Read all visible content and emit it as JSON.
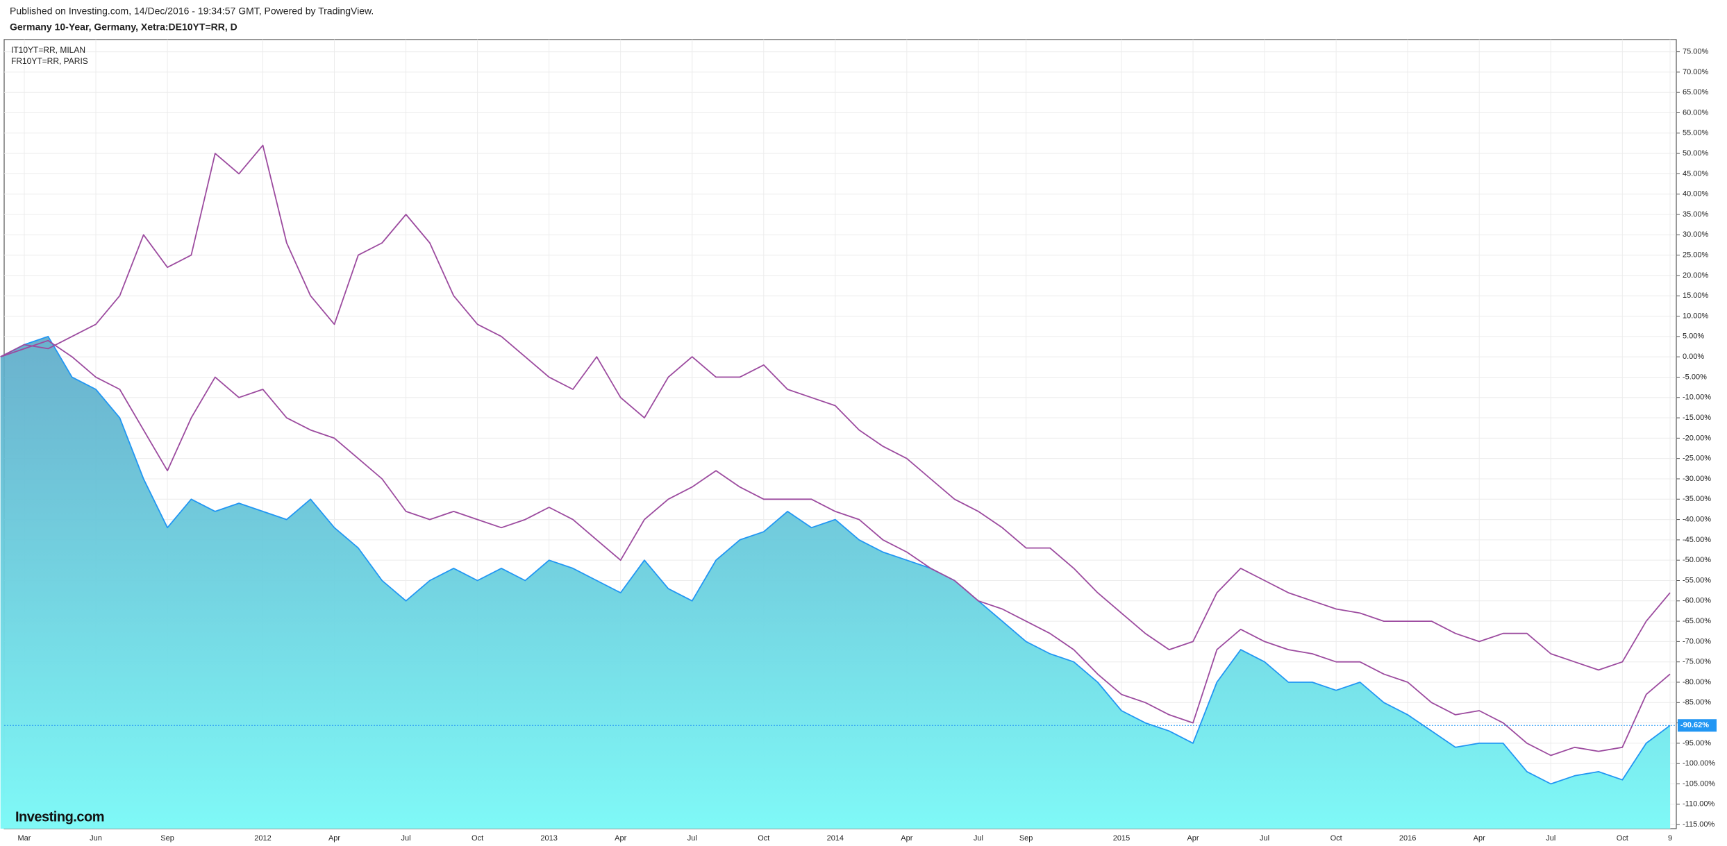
{
  "chart_data": {
    "type": "line",
    "header": "Published on Investing.com, 14/Dec/2016 - 19:34:57 GMT, Powered by TradingView.",
    "title": "Germany 10-Year, Germany, Xetra:DE10YT=RR, D",
    "logo": "Investing.com",
    "last_value_label": "-90.62%",
    "categories": [
      null,
      "Mar",
      null,
      null,
      "Jun",
      null,
      null,
      "Sep",
      null,
      null,
      null,
      "2012",
      null,
      null,
      "Apr",
      null,
      null,
      "Jul",
      null,
      null,
      "Oct",
      null,
      null,
      "2013",
      null,
      null,
      "Apr",
      null,
      null,
      "Jul",
      null,
      null,
      "Oct",
      null,
      null,
      "2014",
      null,
      null,
      "Apr",
      null,
      null,
      "Jul",
      null,
      "Sep",
      null,
      null,
      null,
      "2015",
      null,
      null,
      "Apr",
      null,
      null,
      "Jul",
      null,
      null,
      "Oct",
      null,
      null,
      "2016",
      null,
      null,
      "Apr",
      null,
      null,
      "Jul",
      null,
      null,
      "Oct",
      null,
      "9"
    ],
    "series": [
      {
        "color": "#2196f3",
        "area": true,
        "values": [
          0,
          3,
          5,
          -5,
          -8,
          -15,
          -30,
          -42,
          -35,
          -38,
          -36,
          -38,
          -40,
          -35,
          -42,
          -47,
          -55,
          -60,
          -55,
          -52,
          -55,
          -52,
          -55,
          -50,
          -52,
          -55,
          -58,
          -50,
          -57,
          -60,
          -50,
          -45,
          -43,
          -38,
          -42,
          -40,
          -45,
          -48,
          -50,
          -52,
          -55,
          -60,
          -65,
          -70,
          -73,
          -75,
          -80,
          -87,
          -90,
          -92,
          -95,
          -80,
          -72,
          -75,
          -80,
          -80,
          -82,
          -80,
          -85,
          -88,
          -92,
          -96,
          -95,
          -95,
          -102,
          -105,
          -103,
          -102,
          -104,
          -95,
          -90.62
        ]
      },
      {
        "name": "IT10YT=RR, MILAN",
        "color": "#9c4b9f",
        "values": [
          0,
          3,
          2,
          5,
          8,
          15,
          30,
          22,
          25,
          50,
          45,
          52,
          28,
          15,
          8,
          25,
          28,
          35,
          28,
          15,
          8,
          5,
          0,
          -5,
          -8,
          0,
          -10,
          -15,
          -5,
          0,
          -5,
          -5,
          -2,
          -8,
          -10,
          -12,
          -18,
          -22,
          -25,
          -30,
          -35,
          -38,
          -42,
          -47,
          -47,
          -52,
          -58,
          -63,
          -68,
          -72,
          -70,
          -58,
          -52,
          -55,
          -58,
          -60,
          -62,
          -63,
          -65,
          -65,
          -65,
          -68,
          -70,
          -68,
          -68,
          -73,
          -75,
          -77,
          -75,
          -65,
          -58
        ]
      },
      {
        "name": "FR10YT=RR, PARIS",
        "color": "#9c4b9f",
        "values": [
          0,
          2,
          4,
          0,
          -5,
          -8,
          -18,
          -28,
          -15,
          -5,
          -10,
          -8,
          -15,
          -18,
          -20,
          -25,
          -30,
          -38,
          -40,
          -38,
          -40,
          -42,
          -40,
          -37,
          -40,
          -45,
          -50,
          -40,
          -35,
          -32,
          -28,
          -32,
          -35,
          -35,
          -35,
          -38,
          -40,
          -45,
          -48,
          -52,
          -55,
          -60,
          -62,
          -65,
          -68,
          -72,
          -78,
          -83,
          -85,
          -88,
          -90,
          -72,
          -67,
          -70,
          -72,
          -73,
          -75,
          -75,
          -78,
          -80,
          -85,
          -88,
          -87,
          -90,
          -95,
          -98,
          -96,
          -97,
          -96,
          -83,
          -78
        ]
      }
    ],
    "ylim": [
      -116,
      78
    ],
    "yticks": [
      {
        "value": 75,
        "label": "75.00%"
      },
      {
        "value": 70,
        "label": "70.00%"
      },
      {
        "value": 65,
        "label": "65.00%"
      },
      {
        "value": 60,
        "label": "60.00%"
      },
      {
        "value": 55,
        "label": "55.00%"
      },
      {
        "value": 50,
        "label": "50.00%"
      },
      {
        "value": 45,
        "label": "45.00%"
      },
      {
        "value": 40,
        "label": "40.00%"
      },
      {
        "value": 35,
        "label": "35.00%"
      },
      {
        "value": 30,
        "label": "30.00%"
      },
      {
        "value": 25,
        "label": "25.00%"
      },
      {
        "value": 20,
        "label": "20.00%"
      },
      {
        "value": 15,
        "label": "15.00%"
      },
      {
        "value": 10,
        "label": "10.00%"
      },
      {
        "value": 5,
        "label": "5.00%"
      },
      {
        "value": 0,
        "label": "0.00%"
      },
      {
        "value": -5,
        "label": "-5.00%"
      },
      {
        "value": -10,
        "label": "-10.00%"
      },
      {
        "value": -15,
        "label": "-15.00%"
      },
      {
        "value": -20,
        "label": "-20.00%"
      },
      {
        "value": -25,
        "label": "-25.00%"
      },
      {
        "value": -30,
        "label": "-30.00%"
      },
      {
        "value": -35,
        "label": "-35.00%"
      },
      {
        "value": -40,
        "label": "-40.00%"
      },
      {
        "value": -45,
        "label": "-45.00%"
      },
      {
        "value": -50,
        "label": "-50.00%"
      },
      {
        "value": -55,
        "label": "-55.00%"
      },
      {
        "value": -60,
        "label": "-60.00%"
      },
      {
        "value": -65,
        "label": "-65.00%"
      },
      {
        "value": -70,
        "label": "-70.00%"
      },
      {
        "value": -75,
        "label": "-75.00%"
      },
      {
        "value": -80,
        "label": "-80.00%"
      },
      {
        "value": -85,
        "label": "-85.00%"
      },
      {
        "value": -90,
        "label": "-90.00%"
      },
      {
        "value": -95,
        "label": "-95.00%"
      },
      {
        "value": -100,
        "label": "-100.00%"
      },
      {
        "value": -105,
        "label": "-105.00%"
      },
      {
        "value": -110,
        "label": "-110.00%"
      },
      {
        "value": -115,
        "label": "-115.00%"
      }
    ],
    "grid": true
  }
}
